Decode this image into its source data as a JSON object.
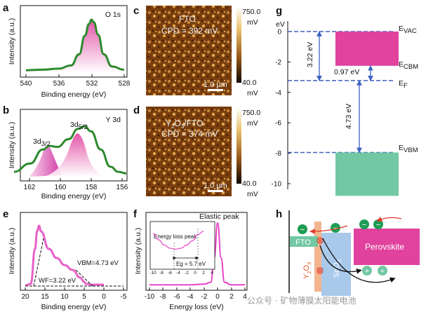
{
  "panels": {
    "a": {
      "letter": "a",
      "peak": "O 1s",
      "xlabel": "Binding energy (eV)",
      "ylabel": "Intensity (a.u.)",
      "xticks": [
        "540",
        "536",
        "532",
        "528"
      ]
    },
    "b": {
      "letter": "b",
      "peak": "Y 3d",
      "xlabel": "Binding energy (eV)",
      "ylabel": "Intensity (a.u.)",
      "xticks": [
        "162",
        "160",
        "158",
        "156"
      ],
      "label_32": "3d",
      "sub_32": "3/2",
      "label_52": "3d",
      "sub_52": "5/2"
    },
    "c": {
      "letter": "c",
      "sample": "FTO",
      "cpd": "CPD = 392 mV",
      "scale_max": "750.0",
      "scale_unit_top": "mV",
      "scale_min": "40.0",
      "scale_unit_bot": "mV",
      "scalebar": "1.0 µm"
    },
    "d": {
      "letter": "d",
      "sample_pre": "Y",
      "sample_sub1": "2",
      "sample_mid": "O",
      "sample_sub2": "3",
      "sample_post": "/FTO",
      "cpd": "CPD = 374 mV",
      "scale_max": "750.0",
      "scale_unit_top": "mV",
      "scale_min": "40.0",
      "scale_unit_bot": "mV",
      "scalebar": "1.0 µm"
    },
    "e": {
      "letter": "e",
      "xlabel": "Binding energy (eV)",
      "ylabel": "Intensity (a.u.)",
      "wf": "WF=3.22 eV",
      "vbm": "VBM=4.73 eV",
      "xticks": [
        "20",
        "15",
        "10",
        "5",
        "0",
        "-5"
      ]
    },
    "f": {
      "letter": "f",
      "title": "Elastic peak",
      "xlabel": "Energy loss (eV)",
      "ylabel": "Intensity (a.u.)",
      "xticks": [
        "-10",
        "-8",
        "-6",
        "-4",
        "-2",
        "0",
        "2",
        "4"
      ],
      "inset_title": "Energy loss peak",
      "inset_eg": "Eg = 5.7 eV",
      "inset_xticks": [
        "-10",
        "-8",
        "-6",
        "-4",
        "-2",
        "0",
        "2",
        "4"
      ]
    },
    "g": {
      "letter": "g",
      "ylabel": "eV",
      "yticks": [
        "0",
        "-2",
        "-4",
        "-6",
        "-8",
        "-10"
      ],
      "evac": "E",
      "evac_sub": "VAC",
      "ecbm": "E",
      "ecbm_sub": "CBM",
      "ef": "E",
      "ef_sub": "F",
      "evbm": "E",
      "evbm_sub": "VBM",
      "gap1": "3.22 eV",
      "gap2": "0.97 eV",
      "gap3": "4.73 eV"
    },
    "h": {
      "letter": "h",
      "fto": "FTO",
      "y2o3_pre": "Y",
      "y2o3_sub1": "2",
      "y2o3_mid": "O",
      "y2o3_sub2": "3",
      "sno2": "SnO",
      "sno2_sub": "2",
      "perovskite": "Perovskite",
      "minus": "−",
      "plus": "+"
    }
  },
  "watermark": "公众号 · 矿物薄膜太阳能电池",
  "colors": {
    "pink": "#e0429e",
    "pink_light": "#f3a6cd",
    "green": "#2d8a2d",
    "blue": "#3b62c0",
    "teal": "#71c8a3",
    "sno2": "#a9c9eb",
    "y2o3": "#f2b58f"
  },
  "chart_data": [
    {
      "panel": "a",
      "type": "line",
      "title": "O 1s",
      "xlabel": "Binding energy (eV)",
      "ylabel": "Intensity (a.u.)",
      "xlim": [
        540,
        528
      ],
      "x": [
        540,
        538,
        536,
        534.5,
        533.5,
        532.8,
        532.3,
        532,
        531.7,
        531.2,
        530.5,
        529.5,
        528
      ],
      "y": [
        0.05,
        0.06,
        0.08,
        0.14,
        0.35,
        0.7,
        0.92,
        1.0,
        0.95,
        0.72,
        0.35,
        0.12,
        0.06
      ]
    },
    {
      "panel": "b",
      "type": "line",
      "title": "Y 3d",
      "xlabel": "Binding energy (eV)",
      "ylabel": "Intensity (a.u.)",
      "xlim": [
        163,
        156
      ],
      "series": [
        {
          "name": "envelope",
          "x": [
            163,
            162,
            161.2,
            160.8,
            160.3,
            159.6,
            159,
            158.6,
            158.2,
            157.6,
            157,
            156.5,
            156
          ],
          "y": [
            0.12,
            0.28,
            0.55,
            0.62,
            0.6,
            0.75,
            0.95,
            1.0,
            0.9,
            0.55,
            0.22,
            0.12,
            0.09
          ]
        },
        {
          "name": "3d3/2",
          "peak": 160.8
        },
        {
          "name": "3d5/2",
          "peak": 158.6
        }
      ]
    },
    {
      "panel": "c",
      "type": "heatmap",
      "title": "FTO",
      "cpd_mV": 392,
      "range_mV": [
        40,
        750
      ]
    },
    {
      "panel": "d",
      "type": "heatmap",
      "title": "Y2O3/FTO",
      "cpd_mV": 374,
      "range_mV": [
        40,
        750
      ]
    },
    {
      "panel": "e",
      "type": "line",
      "xlabel": "Binding energy (eV)",
      "ylabel": "Intensity (a.u.)",
      "xlim": [
        22,
        -5
      ],
      "x": [
        20,
        18.6,
        17.5,
        17.0,
        16.5,
        16.0,
        14,
        12,
        10,
        8,
        6,
        5,
        4.5,
        3,
        0
      ],
      "y": [
        0.03,
        0.05,
        0.55,
        0.8,
        0.88,
        0.8,
        0.55,
        0.42,
        0.32,
        0.25,
        0.14,
        0.08,
        0.05,
        0.04,
        0.04
      ],
      "wf_eV": 3.22,
      "vbm_eV": 4.73
    },
    {
      "panel": "f",
      "type": "line",
      "title": "Elastic peak",
      "xlabel": "Energy loss (eV)",
      "ylabel": "Intensity (a.u.)",
      "xlim": [
        -10,
        4
      ],
      "x": [
        -10,
        -6,
        -4,
        -2,
        -1,
        -0.5,
        0,
        0.5,
        1,
        2,
        4
      ],
      "y": [
        0.02,
        0.02,
        0.02,
        0.03,
        0.06,
        0.45,
        1.0,
        0.45,
        0.06,
        0.02,
        0.02
      ],
      "inset": {
        "eg_eV": 5.7,
        "x": [
          -10,
          -9,
          -8,
          -7,
          -6,
          -5,
          -4,
          -3,
          -2,
          -1
        ],
        "y": [
          0.9,
          0.6,
          0.35,
          0.2,
          0.15,
          0.2,
          0.35,
          0.55,
          0.85,
          1.0
        ]
      }
    },
    {
      "panel": "g",
      "type": "diagram",
      "ylabel": "eV",
      "ylim": [
        -10.8,
        0.6
      ],
      "levels": {
        "E_VAC": 0,
        "E_CBM": -2.25,
        "E_F": -3.22,
        "E_VBM": -7.95
      },
      "gaps_eV": [
        3.22,
        0.97,
        4.73
      ]
    }
  ]
}
